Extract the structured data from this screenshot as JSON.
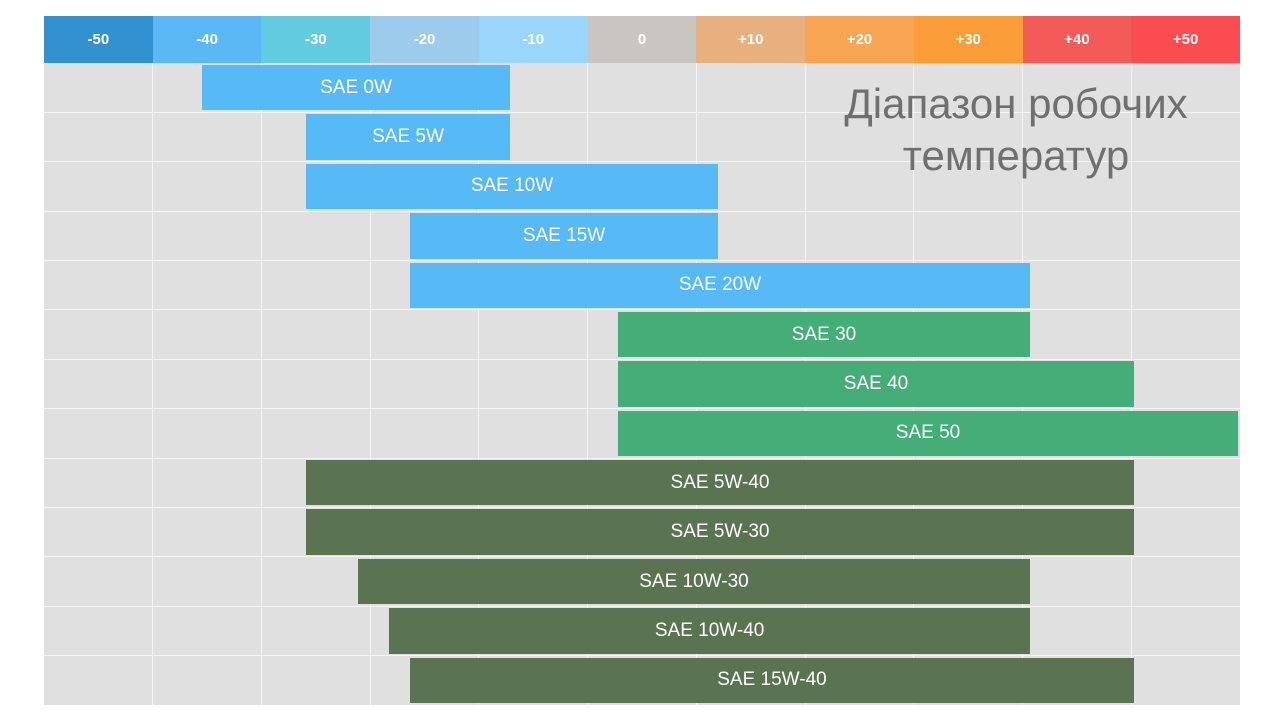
{
  "chart_data": {
    "type": "bar",
    "orientation": "horizontal-range",
    "title": "Діапазон робочих температур",
    "x_ticks": [
      "-50",
      "-40",
      "-30",
      "-20",
      "-10",
      "0",
      "+10",
      "+20",
      "+30",
      "+40",
      "+50"
    ],
    "x_tick_values": [
      -50,
      -40,
      -30,
      -20,
      -10,
      0,
      10,
      20,
      30,
      40,
      50
    ],
    "x_tick_colors": [
      "#3391cf",
      "#5bb8f5",
      "#62cbe0",
      "#9ccbeb",
      "#9ad6fb",
      "#c9c5c3",
      "#e8b07e",
      "#f7a553",
      "#fb9d38",
      "#f35b58",
      "#fb4c4f"
    ],
    "series": [
      {
        "label": "SAE 0W",
        "min": -40,
        "max": -10,
        "color": "#57b9f5"
      },
      {
        "label": "SAE 5W",
        "min": -30,
        "max": -10,
        "color": "#57b9f5"
      },
      {
        "label": "SAE 10W",
        "min": -30,
        "max": 10,
        "color": "#57b9f5"
      },
      {
        "label": "SAE 15W",
        "min": -20,
        "max": 10,
        "color": "#57b9f5"
      },
      {
        "label": "SAE 20W",
        "min": -20,
        "max": 40,
        "color": "#57b9f5"
      },
      {
        "label": "SAE 30",
        "min": 0,
        "max": 40,
        "color": "#44ad78"
      },
      {
        "label": "SAE 40",
        "min": 0,
        "max": 50,
        "color": "#44ad78"
      },
      {
        "label": "SAE 50",
        "min": 0,
        "max": 60,
        "color": "#44ad78"
      },
      {
        "label": "SAE 5W-40",
        "min": -30,
        "max": 50,
        "color": "#5a7452"
      },
      {
        "label": "SAE 5W-30",
        "min": -30,
        "max": 50,
        "color": "#5a7452"
      },
      {
        "label": "SAE 10W-30",
        "min": -25,
        "max": 40,
        "color": "#5a7452"
      },
      {
        "label": "SAE 10W-40",
        "min": -22,
        "max": 40,
        "color": "#5a7452"
      },
      {
        "label": "SAE 15W-40",
        "min": -20,
        "max": 50,
        "color": "#5a7452"
      }
    ],
    "xlim": [
      -55,
      60
    ],
    "grid": true
  }
}
